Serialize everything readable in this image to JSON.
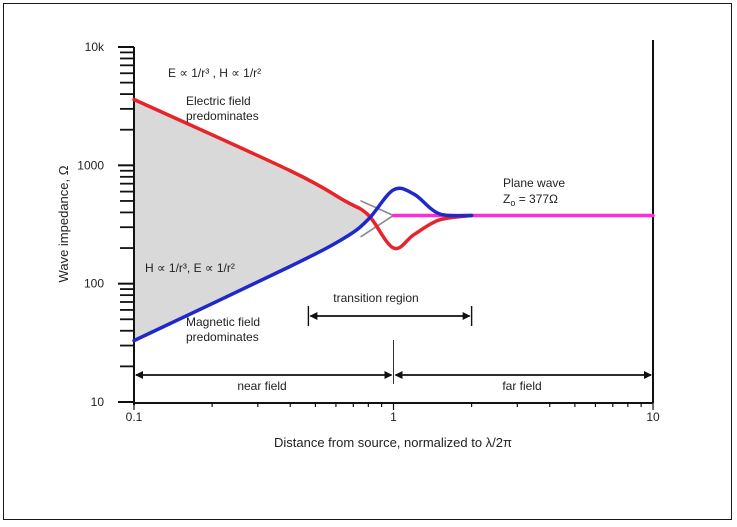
{
  "chart_data": {
    "type": "line",
    "title": "",
    "xlabel": "Distance from source, normalized to λ/2π",
    "ylabel": "Wave impedance, Ω",
    "x_scale": "log",
    "y_scale": "log",
    "xlim": [
      0.1,
      10
    ],
    "ylim": [
      10,
      10000
    ],
    "x_ticks": [
      0.1,
      1,
      10
    ],
    "x_tick_labels": [
      "0.1",
      "1",
      "10"
    ],
    "y_ticks": [
      10,
      100,
      1000,
      10000
    ],
    "y_tick_labels": [
      "10",
      "100",
      "1000",
      "10k"
    ],
    "grid": false,
    "series": [
      {
        "color": "#e8232a",
        "points": [
          [
            0.1,
            3600
          ],
          [
            0.4,
            900
          ],
          [
            0.65,
            500
          ],
          [
            0.8,
            380
          ],
          [
            1.0,
            200
          ],
          [
            1.2,
            260
          ],
          [
            1.5,
            345
          ],
          [
            2.0,
            377
          ]
        ]
      },
      {
        "color": "#1f28c8",
        "points": [
          [
            0.1,
            33
          ],
          [
            0.4,
            140
          ],
          [
            0.65,
            245
          ],
          [
            0.8,
            350
          ],
          [
            1.0,
            620
          ],
          [
            1.2,
            570
          ],
          [
            1.5,
            390
          ],
          [
            2.0,
            377
          ]
        ]
      },
      {
        "color": "#888888",
        "points": [
          [
            0.75,
            500
          ],
          [
            1.0,
            377
          ]
        ]
      },
      {
        "color": "#888888",
        "points": [
          [
            0.75,
            250
          ],
          [
            1.0,
            377
          ]
        ]
      },
      {
        "color": "#ff2bd6",
        "points": [
          [
            1.0,
            377
          ],
          [
            10,
            377
          ]
        ]
      }
    ],
    "annotations": {
      "electric_formula": "E ∝ 1/r³ , H ∝ 1/r²",
      "electric_label_1": "Electric field",
      "electric_label_2": "predominates",
      "magnetic_formula": "H ∝ 1/r³, E ∝ 1/r²",
      "magnetic_label_1": "Magnetic field",
      "magnetic_label_2": "predominates",
      "plane_wave_1": "Plane wave",
      "plane_wave_2_prefix": "Z",
      "plane_wave_2_sub": "o",
      "plane_wave_2_suffix": " = 377Ω",
      "transition_region": "transition region",
      "near_field": "near field",
      "far_field": "far field"
    },
    "transition_range": [
      0.47,
      2.0
    ],
    "near_far_boundary": 1.0
  }
}
